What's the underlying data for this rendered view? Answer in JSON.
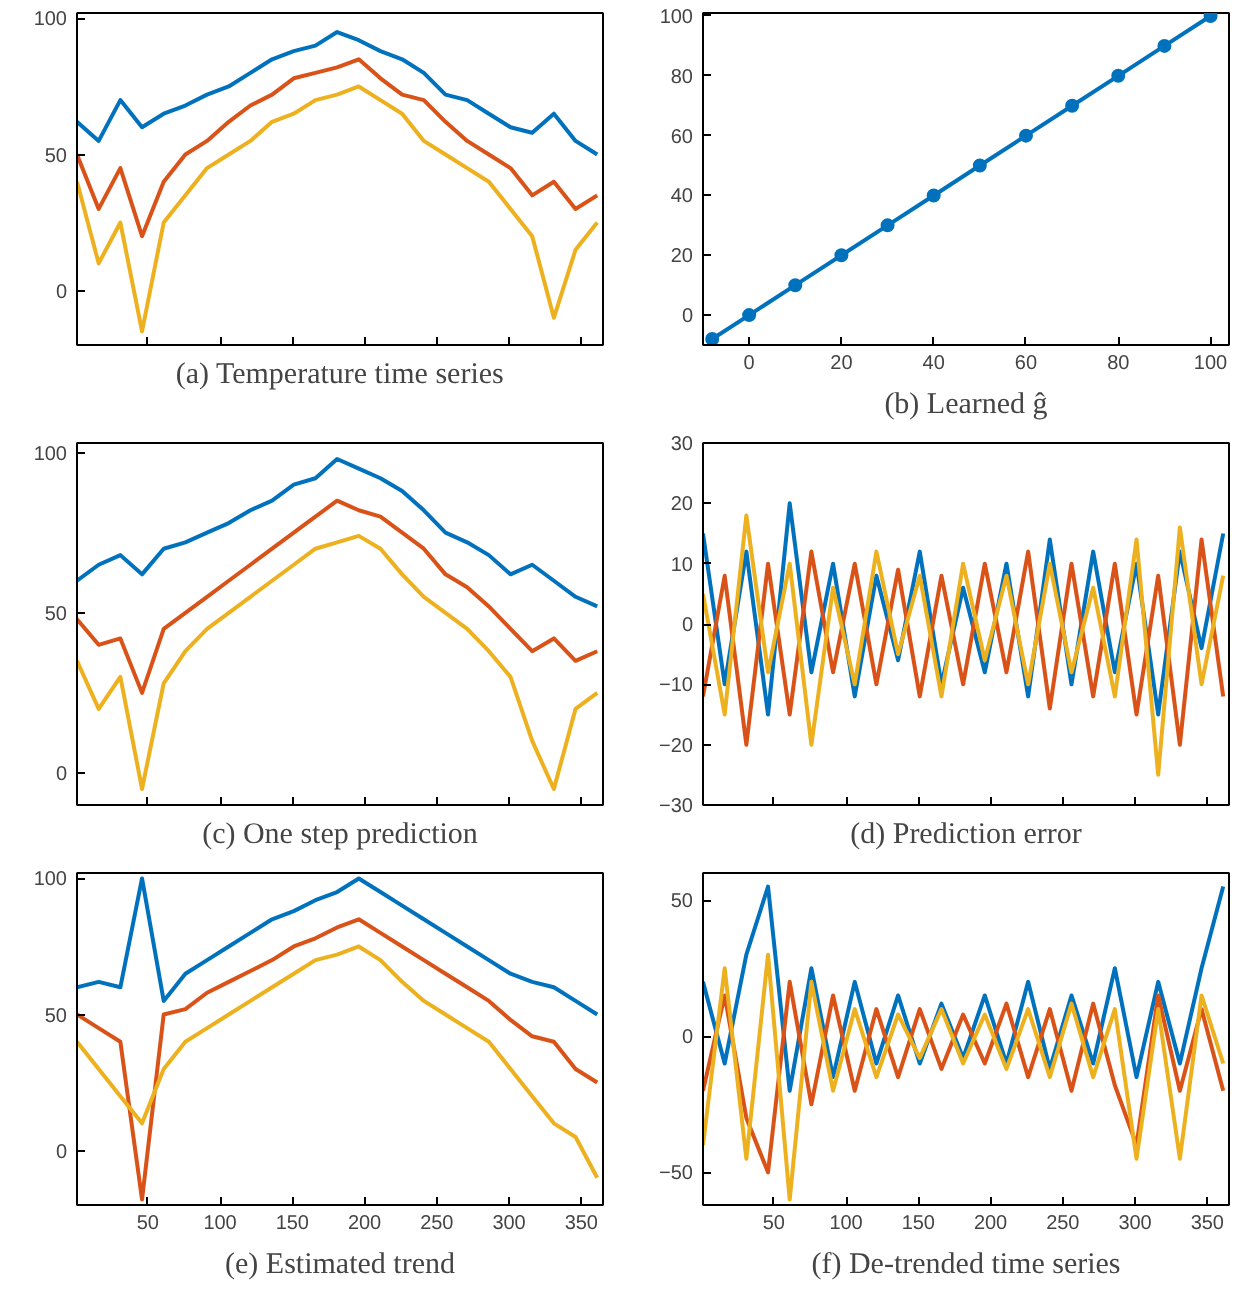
{
  "chart_data": [
    {
      "type": "line",
      "title": "(a) Temperature time series",
      "x": [
        1,
        16,
        31,
        46,
        61,
        76,
        91,
        106,
        121,
        136,
        151,
        166,
        181,
        196,
        211,
        226,
        241,
        256,
        271,
        286,
        301,
        316,
        331,
        346,
        361
      ],
      "xlim": [
        1,
        365
      ],
      "ylim": [
        -20,
        102
      ],
      "xticks": [
        50,
        100,
        150,
        200,
        250,
        300,
        350
      ],
      "yticks": [
        0,
        50,
        100
      ],
      "tick_labels": "y",
      "grid": false,
      "series": [
        {
          "color": "#0072bd",
          "values": [
            62,
            55,
            70,
            60,
            65,
            68,
            72,
            75,
            80,
            85,
            88,
            90,
            95,
            92,
            88,
            85,
            80,
            72,
            70,
            65,
            60,
            58,
            65,
            55,
            50
          ]
        },
        {
          "color": "#d95319",
          "values": [
            50,
            30,
            45,
            20,
            40,
            50,
            55,
            62,
            68,
            72,
            78,
            80,
            82,
            85,
            78,
            72,
            70,
            62,
            55,
            50,
            45,
            35,
            40,
            30,
            35
          ]
        },
        {
          "color": "#edb120",
          "values": [
            40,
            10,
            25,
            -15,
            25,
            35,
            45,
            50,
            55,
            62,
            65,
            70,
            72,
            75,
            70,
            65,
            55,
            50,
            45,
            40,
            30,
            20,
            -10,
            15,
            25
          ]
        }
      ]
    },
    {
      "type": "line",
      "title": "(b) Learned ĝ",
      "x": [
        -8,
        0,
        10,
        20,
        30,
        40,
        50,
        60,
        70,
        80,
        90,
        100
      ],
      "xlim": [
        -10,
        104
      ],
      "ylim": [
        -10,
        101
      ],
      "xticks": [
        0,
        20,
        40,
        60,
        80,
        100
      ],
      "yticks": [
        0,
        20,
        40,
        60,
        80,
        100
      ],
      "grid": false,
      "marker": "circle",
      "series": [
        {
          "color": "#0072bd",
          "values": [
            -8,
            0,
            10,
            20,
            30,
            40,
            50,
            60,
            70,
            80,
            90,
            100
          ]
        }
      ]
    },
    {
      "type": "line",
      "title": "(c) One step prediction",
      "x": [
        1,
        16,
        31,
        46,
        61,
        76,
        91,
        106,
        121,
        136,
        151,
        166,
        181,
        196,
        211,
        226,
        241,
        256,
        271,
        286,
        301,
        316,
        331,
        346,
        361
      ],
      "xlim": [
        1,
        365
      ],
      "ylim": [
        -10,
        103
      ],
      "xticks": [
        50,
        100,
        150,
        200,
        250,
        300,
        350
      ],
      "yticks": [
        0,
        50,
        100
      ],
      "tick_labels": "y",
      "grid": false,
      "series": [
        {
          "color": "#0072bd",
          "values": [
            60,
            65,
            68,
            62,
            70,
            72,
            75,
            78,
            82,
            85,
            90,
            92,
            98,
            95,
            92,
            88,
            82,
            75,
            72,
            68,
            62,
            65,
            60,
            55,
            52
          ]
        },
        {
          "color": "#d95319",
          "values": [
            48,
            40,
            42,
            25,
            45,
            50,
            55,
            60,
            65,
            70,
            75,
            80,
            85,
            82,
            80,
            75,
            70,
            62,
            58,
            52,
            45,
            38,
            42,
            35,
            38
          ]
        },
        {
          "color": "#edb120",
          "values": [
            35,
            20,
            30,
            -5,
            28,
            38,
            45,
            50,
            55,
            60,
            65,
            70,
            72,
            74,
            70,
            62,
            55,
            50,
            45,
            38,
            30,
            10,
            -5,
            20,
            25
          ]
        }
      ]
    },
    {
      "type": "line",
      "title": "(d) Prediction error",
      "x": [
        1,
        16,
        31,
        46,
        61,
        76,
        91,
        106,
        121,
        136,
        151,
        166,
        181,
        196,
        211,
        226,
        241,
        256,
        271,
        286,
        301,
        316,
        331,
        346,
        361
      ],
      "xlim": [
        1,
        365
      ],
      "ylim": [
        -30,
        30
      ],
      "xticks": [
        50,
        100,
        150,
        200,
        250,
        300,
        350
      ],
      "yticks": [
        -30,
        -20,
        -10,
        0,
        10,
        20,
        30
      ],
      "tick_labels": "y",
      "grid": false,
      "series": [
        {
          "color": "#0072bd",
          "values": [
            15,
            -10,
            12,
            -15,
            20,
            -8,
            10,
            -12,
            8,
            -6,
            12,
            -10,
            6,
            -8,
            10,
            -12,
            14,
            -10,
            12,
            -8,
            10,
            -15,
            12,
            -4,
            15
          ]
        },
        {
          "color": "#d95319",
          "values": [
            -12,
            8,
            -20,
            10,
            -15,
            12,
            -8,
            10,
            -10,
            9,
            -12,
            8,
            -10,
            10,
            -8,
            12,
            -14,
            10,
            -12,
            10,
            -15,
            8,
            -20,
            14,
            -12
          ]
        },
        {
          "color": "#edb120",
          "values": [
            5,
            -15,
            18,
            -8,
            10,
            -20,
            6,
            -10,
            12,
            -5,
            8,
            -12,
            10,
            -6,
            8,
            -10,
            10,
            -8,
            6,
            -12,
            14,
            -25,
            16,
            -10,
            8
          ]
        }
      ]
    },
    {
      "type": "line",
      "title": "(e) Estimated trend",
      "x": [
        1,
        16,
        31,
        46,
        61,
        76,
        91,
        106,
        121,
        136,
        151,
        166,
        181,
        196,
        211,
        226,
        241,
        256,
        271,
        286,
        301,
        316,
        331,
        346,
        361
      ],
      "xlim": [
        1,
        365
      ],
      "ylim": [
        -20,
        102
      ],
      "xticks": [
        50,
        100,
        150,
        200,
        250,
        300,
        350
      ],
      "yticks": [
        0,
        50,
        100
      ],
      "grid": false,
      "series": [
        {
          "color": "#0072bd",
          "values": [
            60,
            62,
            60,
            100,
            55,
            65,
            70,
            75,
            80,
            85,
            88,
            92,
            95,
            100,
            95,
            90,
            85,
            80,
            75,
            70,
            65,
            62,
            60,
            55,
            50
          ]
        },
        {
          "color": "#d95319",
          "values": [
            50,
            45,
            40,
            -18,
            50,
            52,
            58,
            62,
            66,
            70,
            75,
            78,
            82,
            85,
            80,
            75,
            70,
            65,
            60,
            55,
            48,
            42,
            40,
            30,
            25
          ]
        },
        {
          "color": "#edb120",
          "values": [
            40,
            30,
            20,
            10,
            30,
            40,
            45,
            50,
            55,
            60,
            65,
            70,
            72,
            75,
            70,
            62,
            55,
            50,
            45,
            40,
            30,
            20,
            10,
            5,
            -10
          ]
        }
      ]
    },
    {
      "type": "line",
      "title": "(f) De-trended time series",
      "x": [
        1,
        16,
        31,
        46,
        61,
        76,
        91,
        106,
        121,
        136,
        151,
        166,
        181,
        196,
        211,
        226,
        241,
        256,
        271,
        286,
        301,
        316,
        331,
        346,
        361
      ],
      "xlim": [
        1,
        365
      ],
      "ylim": [
        -62,
        60
      ],
      "xticks": [
        50,
        100,
        150,
        200,
        250,
        300,
        350
      ],
      "yticks": [
        -50,
        0,
        50
      ],
      "grid": false,
      "series": [
        {
          "color": "#0072bd",
          "values": [
            20,
            -10,
            30,
            55,
            -20,
            25,
            -15,
            20,
            -10,
            15,
            -10,
            12,
            -8,
            15,
            -10,
            20,
            -12,
            15,
            -10,
            25,
            -15,
            20,
            -10,
            25,
            55
          ]
        },
        {
          "color": "#d95319",
          "values": [
            -20,
            15,
            -30,
            -50,
            20,
            -25,
            15,
            -20,
            10,
            -15,
            10,
            -12,
            8,
            -10,
            12,
            -15,
            10,
            -20,
            12,
            -18,
            -40,
            15,
            -20,
            10,
            -20
          ]
        },
        {
          "color": "#edb120",
          "values": [
            -40,
            25,
            -45,
            30,
            -60,
            20,
            -20,
            10,
            -15,
            8,
            -8,
            10,
            -10,
            8,
            -12,
            10,
            -15,
            12,
            -15,
            10,
            -45,
            10,
            -45,
            15,
            -10
          ]
        }
      ]
    }
  ]
}
